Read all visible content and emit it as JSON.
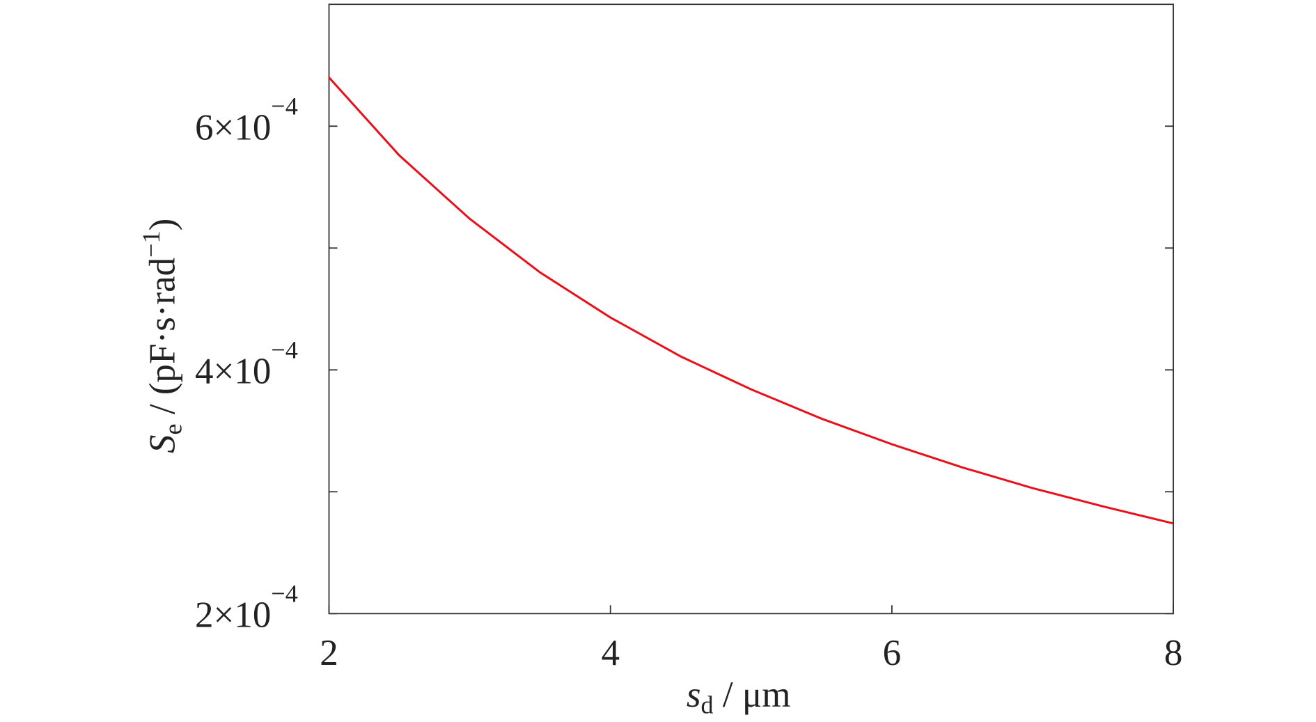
{
  "chart_data": {
    "type": "line",
    "x": [
      2,
      2.5,
      3,
      3.5,
      4,
      4.5,
      5,
      5.5,
      6,
      6.5,
      7,
      7.5,
      8
    ],
    "series": [
      {
        "name": "S_e",
        "color": "#e8101a",
        "values": [
          0.00064,
          0.000576,
          0.000524,
          0.00048,
          0.000443,
          0.000411,
          0.000384,
          0.00036,
          0.000339,
          0.00032,
          0.000303,
          0.000288,
          0.000274
        ]
      }
    ],
    "xlim": [
      2,
      8
    ],
    "xticks": [
      2,
      4,
      6,
      8
    ],
    "ylim": [
      0.0002,
      0.0007
    ],
    "yticks": [
      {
        "value": 0.0002,
        "label": "2×10",
        "exponent": "−4"
      },
      {
        "value": 0.0004,
        "label": "4×10",
        "exponent": "−4"
      },
      {
        "value": 0.0006,
        "label": "6×10",
        "exponent": "−4"
      }
    ],
    "yminor_ticks": [
      0.0003,
      0.0005
    ],
    "xlabel": {
      "symbol": "s",
      "subscript": "d",
      "text": " / μm"
    },
    "ylabel": {
      "symbol": "S",
      "subscript": "e",
      "text": " / (pF·s·rad",
      "superscript": "−1",
      "close": ")"
    },
    "grid": false
  }
}
